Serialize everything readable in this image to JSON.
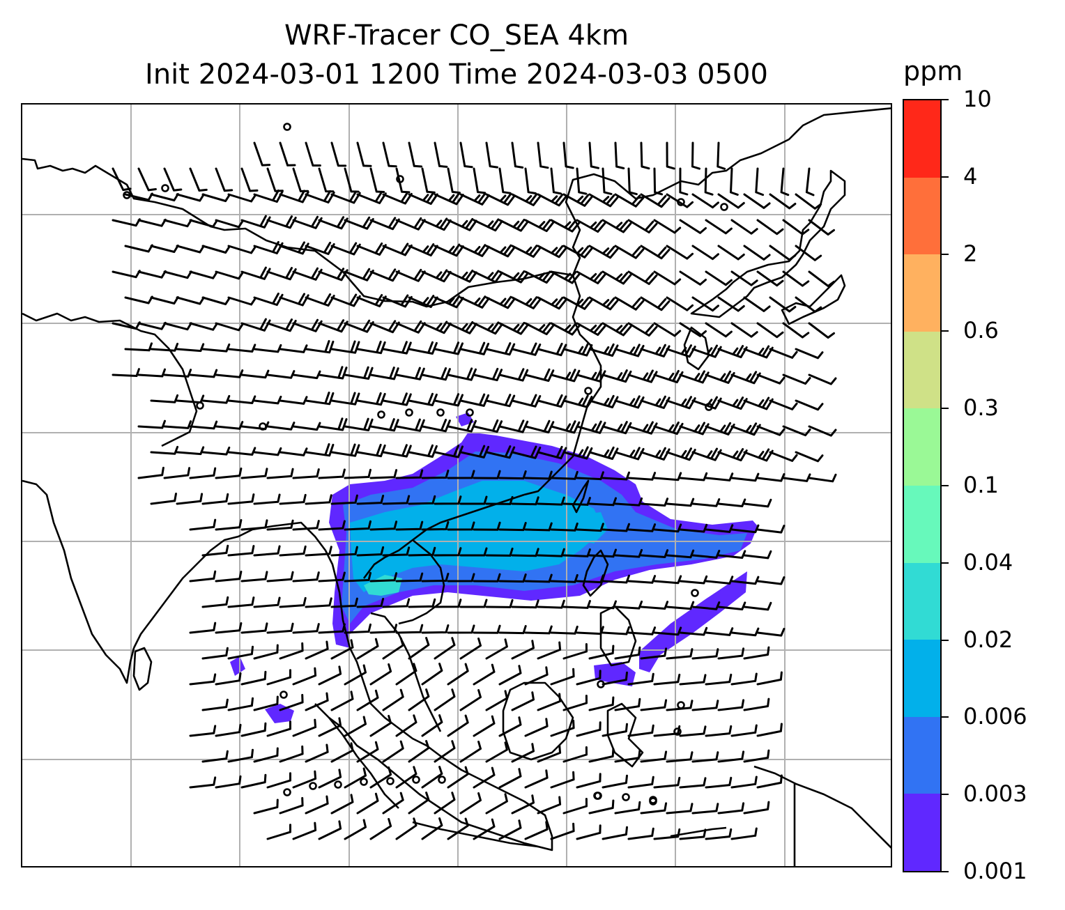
{
  "title": {
    "line1": "WRF-Tracer CO_SEA 4km",
    "line2": "Init 2024-03-01 1200 Time 2024-03-03 0500"
  },
  "colorbar": {
    "unit": "ppm",
    "levels": [
      "0.001",
      "0.003",
      "0.006",
      "0.02",
      "0.04",
      "0.1",
      "0.3",
      "0.6",
      "2",
      "4",
      "10"
    ],
    "colors": [
      "#6028ff",
      "#3173f3",
      "#02b0ea",
      "#31dbd4",
      "#67f9bb",
      "#9af996",
      "#cfe187",
      "#ffb15f",
      "#ff6f3a",
      "#ff2819"
    ]
  },
  "map": {
    "gridlines": true,
    "coastline_color": "#000000",
    "gridline_color": "#b0b0b0",
    "wind_barb_color": "#000000",
    "plume_levels_present": [
      "0.001",
      "0.003",
      "0.006",
      "0.02"
    ]
  }
}
